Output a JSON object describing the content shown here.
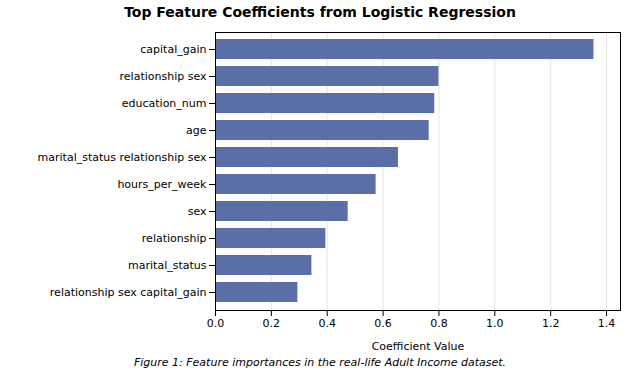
{
  "chart_data": {
    "type": "bar",
    "orientation": "horizontal",
    "title": "Top Feature Coefficients from Logistic Regression",
    "xlabel": "Coefficient Value",
    "caption": "Figure 1: Feature importances in the real-life Adult Income dataset.",
    "categories": [
      "relationship sex capital_gain",
      "marital_status",
      "relationship",
      "sex",
      "hours_per_week",
      "marital_status relationship sex",
      "age",
      "education_num",
      "relationship sex",
      "capital_gain"
    ],
    "values": [
      0.295,
      0.345,
      0.395,
      0.475,
      0.575,
      0.655,
      0.765,
      0.785,
      0.8,
      1.355
    ],
    "color": "#5a6fa8",
    "xlim": [
      0,
      1.45
    ],
    "xticks": [
      {
        "value": 0,
        "label": "0.0"
      },
      0.2,
      0.4,
      0.6,
      0.8,
      {
        "value": 1,
        "label": "1.0"
      },
      1.2,
      1.4
    ],
    "grid": true
  }
}
